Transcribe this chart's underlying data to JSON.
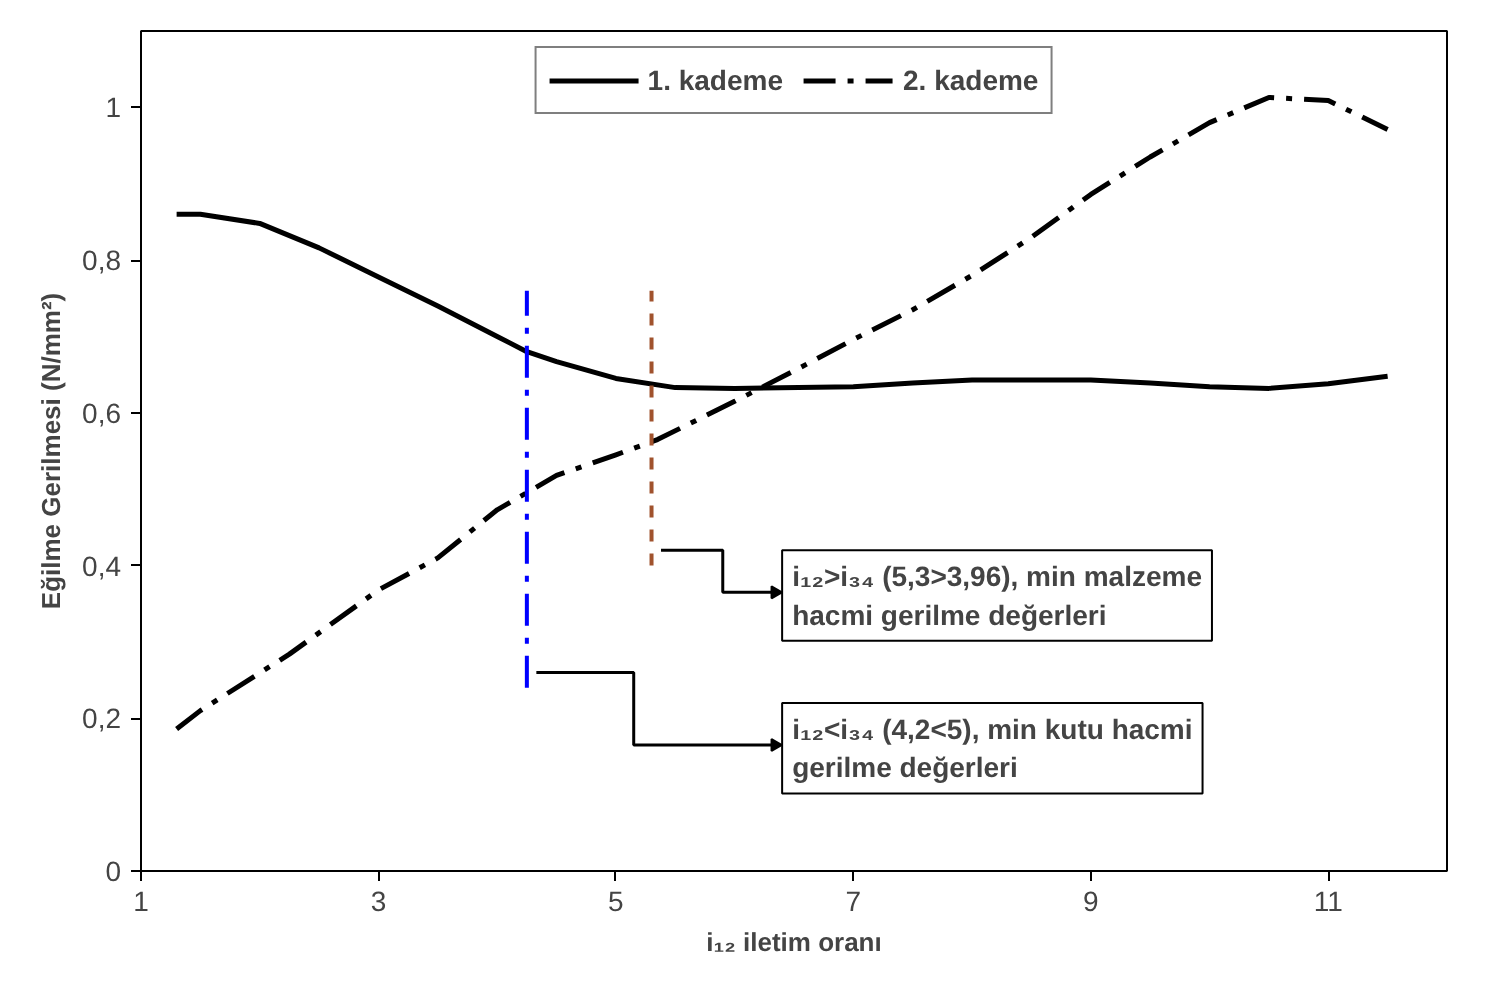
{
  "chart_data": {
    "type": "line",
    "xlabel": "i₁₂ iletim oranı",
    "ylabel": "Eğilme Gerilmesi (N/mm²)",
    "xlim": [
      1,
      12
    ],
    "xticks": [
      1,
      3,
      5,
      7,
      9,
      11
    ],
    "ylim": [
      0,
      1.1
    ],
    "yticks": [
      0,
      {
        "value": 0.2,
        "label": "0,2"
      },
      {
        "value": 0.4,
        "label": "0,4"
      },
      {
        "value": 0.6,
        "label": "0,6"
      },
      {
        "value": 0.8,
        "label": "0,8"
      },
      1
    ],
    "grid": false,
    "legend": "top",
    "marker": "none",
    "series": [
      {
        "name": "1. kademe",
        "color": "#000000",
        "line_style": "solid",
        "x": [
          1.3,
          1.5,
          2,
          2.5,
          3,
          3.5,
          4,
          4.25,
          4.5,
          5,
          5.5,
          6,
          7,
          7.5,
          8,
          9,
          9.5,
          10,
          10.5,
          11,
          11.5
        ],
        "values": [
          0.86,
          0.86,
          0.848,
          0.816,
          0.778,
          0.74,
          0.7,
          0.68,
          0.667,
          0.645,
          0.633,
          0.632,
          0.634,
          0.639,
          0.643,
          0.643,
          0.639,
          0.634,
          0.632,
          0.638,
          0.648
        ]
      },
      {
        "name": "2. kademe",
        "color": "#000000",
        "line_style": "dashdot",
        "x": [
          1.3,
          1.5,
          2.25,
          3,
          3.5,
          4,
          4.5,
          5,
          5.35,
          6,
          6.5,
          7,
          7.5,
          8,
          8.5,
          9,
          9.5,
          10,
          10.5,
          11,
          11.5
        ],
        "values": [
          0.186,
          0.21,
          0.284,
          0.368,
          0.41,
          0.473,
          0.518,
          0.545,
          0.565,
          0.615,
          0.655,
          0.696,
          0.735,
          0.78,
          0.83,
          0.886,
          0.935,
          0.98,
          1.013,
          1.009,
          0.971
        ]
      },
      {
        "color": "#0000ff",
        "line_style": "dashdot",
        "x": [
          4.25,
          4.25
        ],
        "values": [
          0.24,
          0.76
        ]
      },
      {
        "color": "#a0522d",
        "line_style": "dashed",
        "x": [
          5.3,
          5.3
        ],
        "values": [
          0.4,
          0.76
        ]
      }
    ],
    "annotations": [
      {
        "text": "i₁₂>i₃₄ (5,3>3,96), min malzeme hacmi gerilme değerleri",
        "x": 5.3,
        "y": 0.42
      },
      {
        "text": "i₁₂<i₃₄ (4,2<5), min kutu hacmi gerilme değerleri",
        "x": 4.25,
        "y": 0.26
      }
    ]
  }
}
